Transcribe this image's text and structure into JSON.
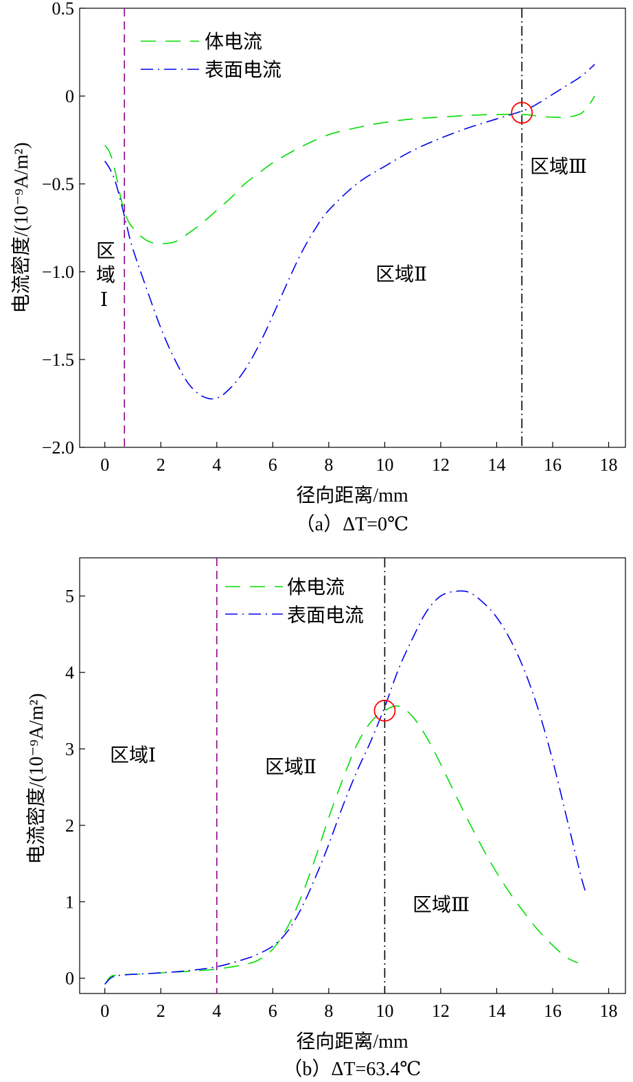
{
  "chart_data": [
    {
      "type": "line",
      "caption": "（a）ΔT=0℃",
      "xlabel": "径向距离/mm",
      "ylabel": "电流密度/(10⁻⁹A/m²)",
      "xlim": [
        -0.9,
        18.6
      ],
      "ylim": [
        -2.0,
        0.5
      ],
      "xticks": [
        0,
        2,
        4,
        6,
        8,
        10,
        12,
        14,
        16,
        18
      ],
      "xtick_labels": [
        "0",
        "2",
        "4",
        "6",
        "8",
        "10",
        "12",
        "14",
        "16",
        "18"
      ],
      "yticks": [
        -2.0,
        -1.5,
        -1.0,
        -0.5,
        0,
        0.5
      ],
      "ytick_labels": [
        "−2.0",
        "−1.5",
        "−1.0",
        "−0.5",
        "0",
        "0.5"
      ],
      "grid": false,
      "legend": {
        "position": "top-left",
        "entries": [
          "体电流",
          "表面电流"
        ]
      },
      "series": [
        {
          "name": "体电流",
          "color": "#00dd00",
          "dash": "dashed",
          "x": [
            0.0,
            0.2,
            0.4,
            0.6,
            0.8,
            1.0,
            1.3,
            1.6,
            2.0,
            2.5,
            3.0,
            3.5,
            4.0,
            4.5,
            5.0,
            5.5,
            6.0,
            7.0,
            8.0,
            9.0,
            10.0,
            11.0,
            12.0,
            13.0,
            14.0,
            15.0,
            15.5,
            16.0,
            16.5,
            17.0,
            17.3,
            17.5
          ],
          "y": [
            -0.28,
            -0.33,
            -0.45,
            -0.6,
            -0.7,
            -0.75,
            -0.8,
            -0.83,
            -0.84,
            -0.83,
            -0.78,
            -0.72,
            -0.65,
            -0.58,
            -0.5,
            -0.44,
            -0.38,
            -0.29,
            -0.22,
            -0.18,
            -0.15,
            -0.13,
            -0.12,
            -0.11,
            -0.105,
            -0.105,
            -0.115,
            -0.12,
            -0.12,
            -0.1,
            -0.05,
            0.0
          ]
        },
        {
          "name": "表面电流",
          "color": "#0000ee",
          "dash": "dash-dot",
          "x": [
            0.0,
            0.2,
            0.4,
            0.6,
            0.8,
            1.0,
            1.5,
            2.0,
            2.5,
            3.0,
            3.5,
            4.0,
            4.5,
            5.0,
            5.5,
            6.0,
            6.5,
            7.0,
            7.5,
            8.0,
            9.0,
            10.0,
            11.0,
            12.0,
            13.0,
            14.0,
            15.0,
            15.5,
            16.0,
            16.5,
            17.0,
            17.5
          ],
          "y": [
            -0.37,
            -0.42,
            -0.5,
            -0.62,
            -0.75,
            -0.87,
            -1.1,
            -1.32,
            -1.5,
            -1.64,
            -1.71,
            -1.72,
            -1.66,
            -1.56,
            -1.42,
            -1.25,
            -1.07,
            -0.9,
            -0.76,
            -0.65,
            -0.5,
            -0.4,
            -0.31,
            -0.24,
            -0.18,
            -0.13,
            -0.08,
            -0.04,
            0.01,
            0.06,
            0.11,
            0.18
          ]
        }
      ],
      "vlines": [
        {
          "x": 0.7,
          "color": "#8b008b",
          "dash": "dashed"
        },
        {
          "x": 14.9,
          "color": "#000000",
          "dash": "dash-dot"
        }
      ],
      "marker": {
        "x": 14.9,
        "y": -0.095,
        "color": "#ff0000"
      },
      "annotations": {
        "region1": [
          "区",
          "域",
          "Ⅰ"
        ],
        "region2": "区域Ⅱ",
        "region3": "区域Ⅲ"
      }
    },
    {
      "type": "line",
      "caption": "（b）ΔT=63.4℃",
      "xlabel": "径向距离/mm",
      "ylabel": "电流密度/(10⁻⁹A/m²)",
      "xlim": [
        -0.9,
        18.6
      ],
      "ylim": [
        -0.2,
        5.5
      ],
      "xticks": [
        0,
        2,
        4,
        6,
        8,
        10,
        12,
        14,
        16,
        18
      ],
      "xtick_labels": [
        "0",
        "2",
        "4",
        "6",
        "8",
        "10",
        "12",
        "14",
        "16",
        "18"
      ],
      "yticks": [
        0,
        1,
        2,
        3,
        4,
        5
      ],
      "ytick_labels": [
        "0",
        "1",
        "2",
        "3",
        "4",
        "5"
      ],
      "grid": false,
      "legend": {
        "position": "top-center",
        "entries": [
          "体电流",
          "表面电流"
        ]
      },
      "series": [
        {
          "name": "体电流",
          "color": "#00dd00",
          "dash": "dashed",
          "x": [
            0.0,
            0.2,
            0.4,
            0.6,
            1.0,
            2.0,
            3.0,
            4.0,
            5.0,
            5.5,
            6.0,
            6.5,
            7.0,
            7.5,
            8.0,
            8.5,
            9.0,
            9.5,
            10.0,
            10.5,
            11.0,
            11.5,
            12.0,
            12.5,
            13.0,
            13.5,
            14.0,
            14.5,
            15.0,
            15.5,
            16.0,
            16.5,
            16.9
          ],
          "y": [
            -0.08,
            0.02,
            0.04,
            0.05,
            0.05,
            0.07,
            0.09,
            0.12,
            0.18,
            0.24,
            0.38,
            0.65,
            1.05,
            1.55,
            2.1,
            2.6,
            3.05,
            3.35,
            3.5,
            3.56,
            3.42,
            3.15,
            2.8,
            2.42,
            2.05,
            1.7,
            1.38,
            1.1,
            0.85,
            0.62,
            0.43,
            0.27,
            0.2
          ]
        },
        {
          "name": "表面电流",
          "color": "#0000ee",
          "dash": "dash-dot",
          "x": [
            0.0,
            0.2,
            0.4,
            0.6,
            1.0,
            2.0,
            3.0,
            4.0,
            5.0,
            5.5,
            6.0,
            6.5,
            7.0,
            7.5,
            8.0,
            8.5,
            9.0,
            9.5,
            10.0,
            10.5,
            11.0,
            11.5,
            12.0,
            12.5,
            13.0,
            13.5,
            14.0,
            14.5,
            15.0,
            15.5,
            16.0,
            16.5,
            17.0,
            17.2
          ],
          "y": [
            -0.08,
            0.0,
            0.03,
            0.04,
            0.05,
            0.07,
            0.1,
            0.15,
            0.25,
            0.32,
            0.42,
            0.6,
            0.9,
            1.3,
            1.75,
            2.25,
            2.7,
            3.1,
            3.55,
            4.05,
            4.45,
            4.8,
            5.0,
            5.06,
            5.05,
            4.92,
            4.72,
            4.42,
            4.02,
            3.5,
            2.85,
            2.1,
            1.35,
            1.1
          ]
        }
      ],
      "vlines": [
        {
          "x": 4.0,
          "color": "#8b008b",
          "dash": "dashed"
        },
        {
          "x": 10.0,
          "color": "#000000",
          "dash": "dash-dot"
        }
      ],
      "marker": {
        "x": 10.0,
        "y": 3.5,
        "color": "#ff0000"
      },
      "annotations": {
        "region1": "区域Ⅰ",
        "region2": "区域Ⅱ",
        "region3": "区域Ⅲ"
      }
    }
  ]
}
